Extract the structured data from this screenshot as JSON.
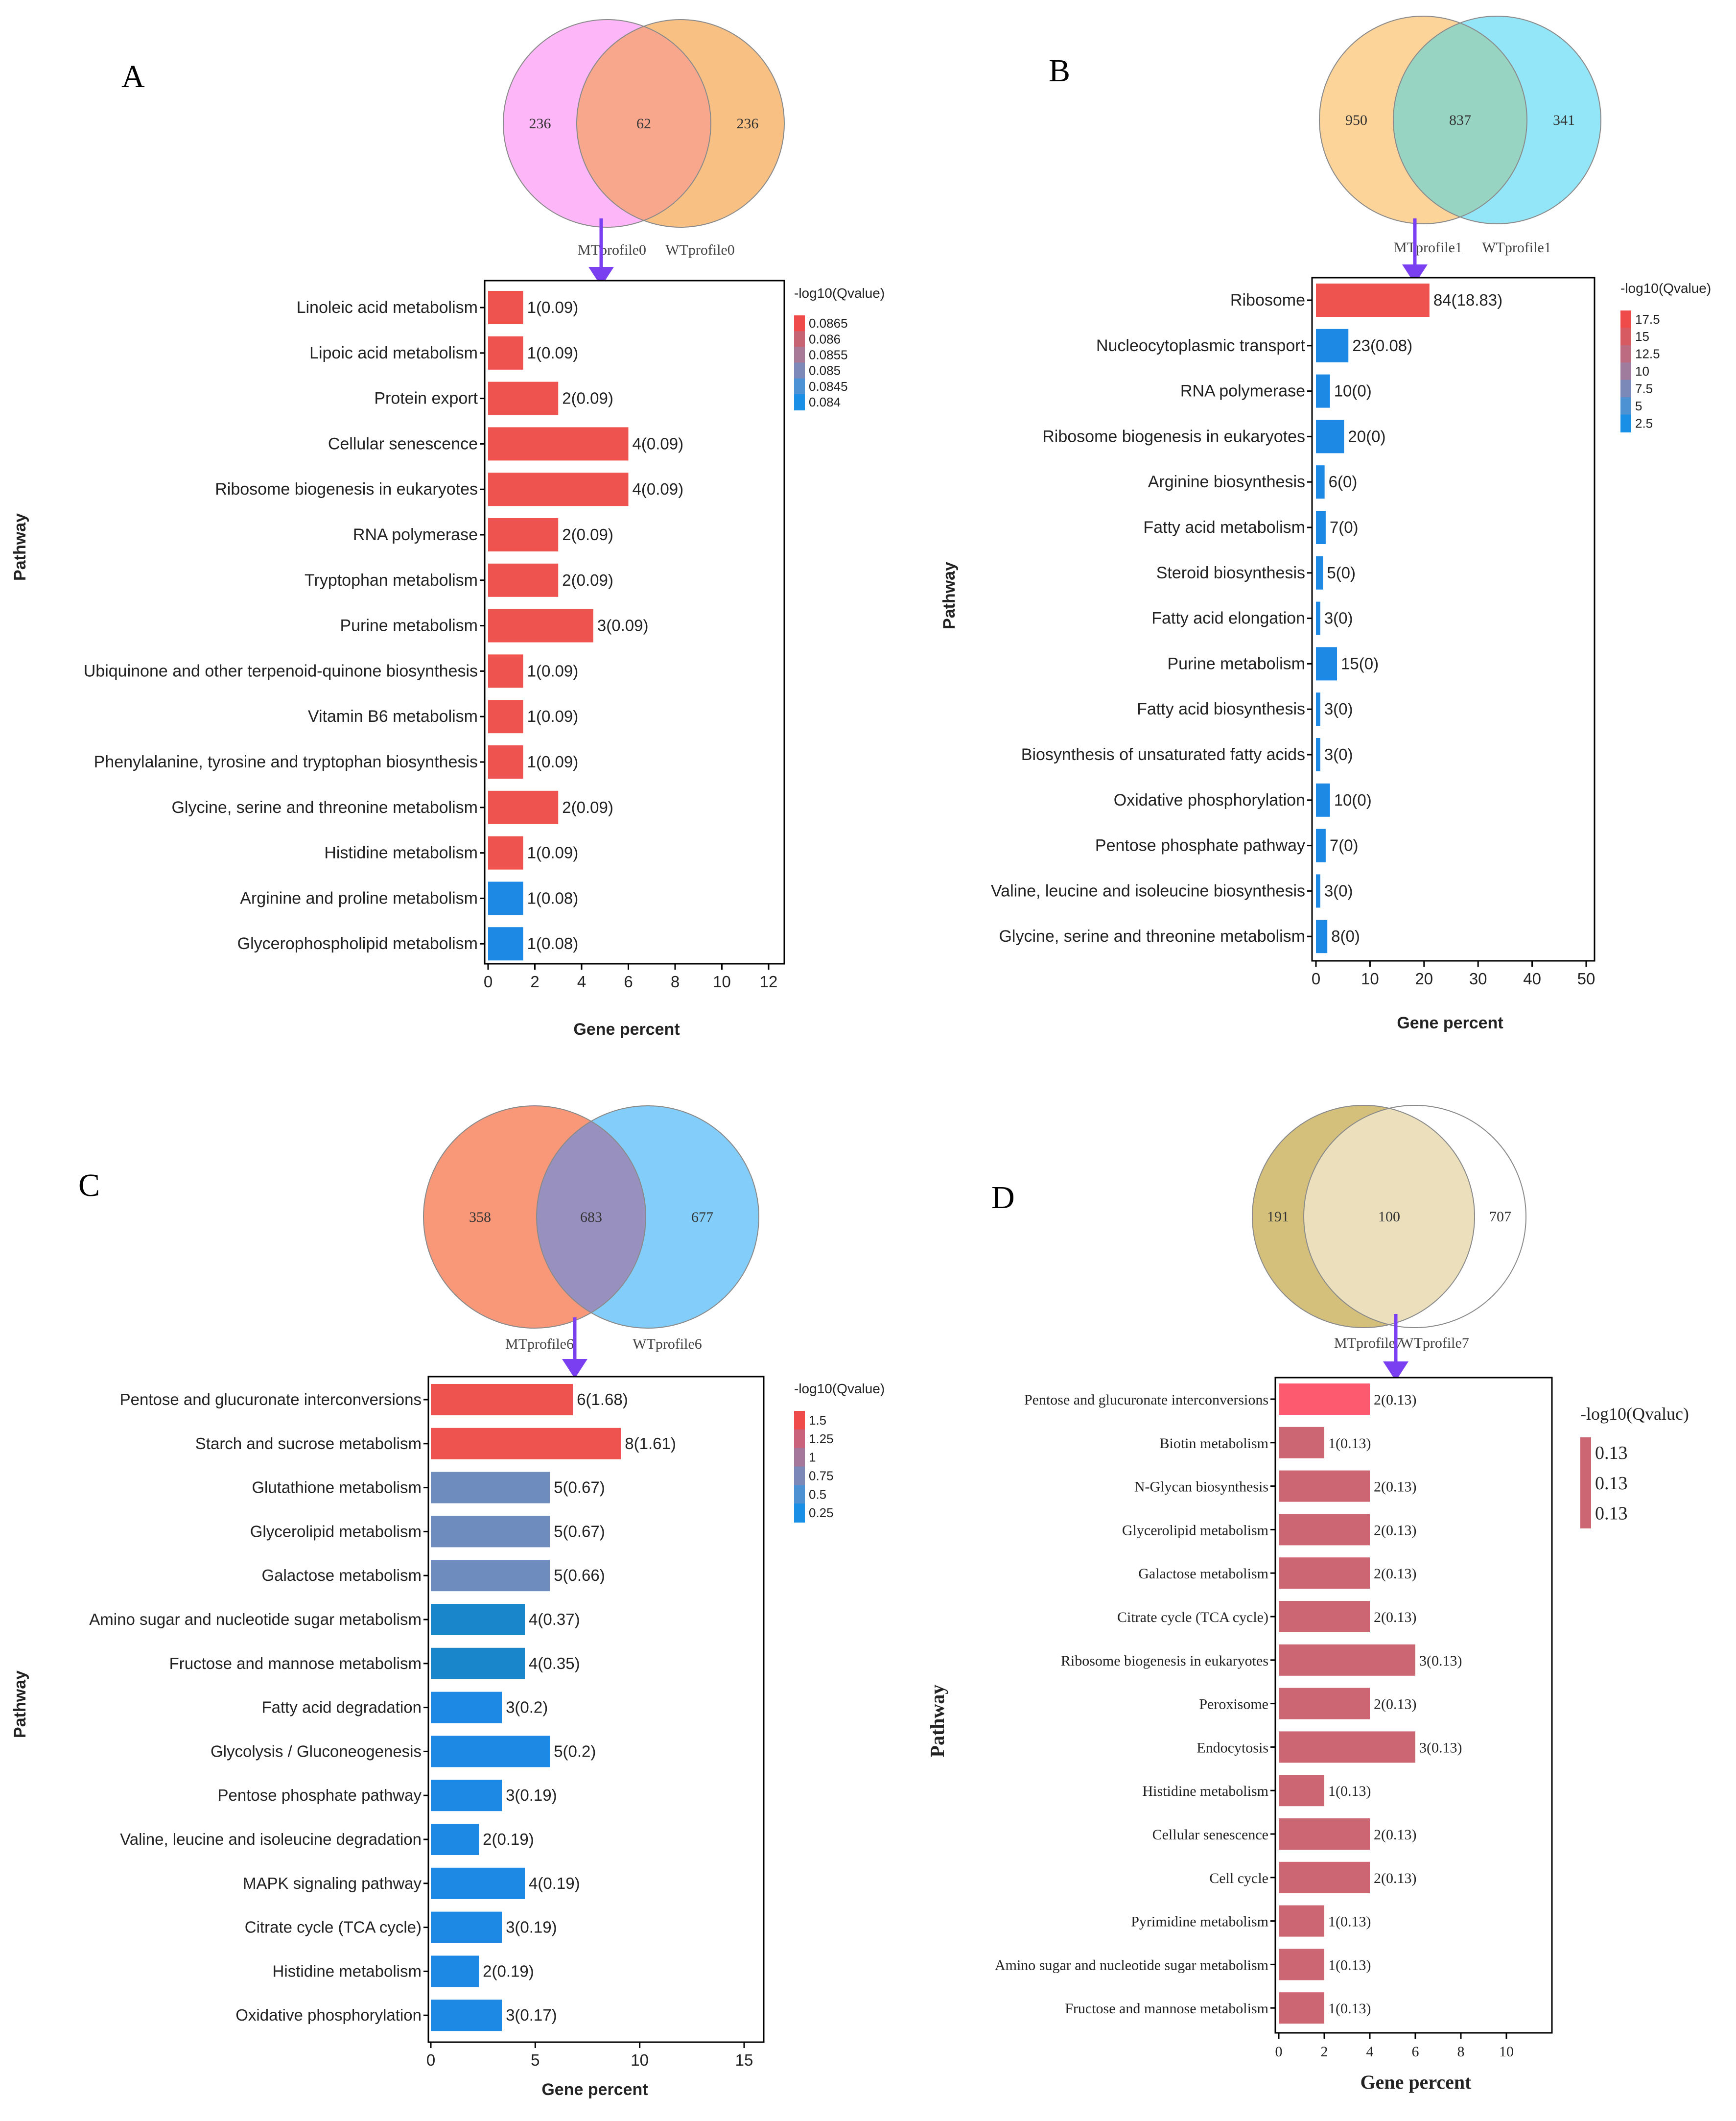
{
  "panels": [
    {
      "letter": "A",
      "venn": {
        "left_label": "MTprofile0",
        "right_label": "WTprofile0",
        "left_count": "236",
        "overlap_count": "62",
        "right_count": "236",
        "left_color": "#fdb6f7",
        "right_color": "#f9c084",
        "overlap_color": "#f8a78d"
      },
      "legend_title": "-log10(Qvalue)",
      "legend_ticks": [
        "0.0865",
        "0.086",
        "0.0855",
        "0.085",
        "0.0845",
        "0.084"
      ],
      "legend_colors": [
        "#ef4b4b",
        "#c76473",
        "#a87a97",
        "#7c89b9",
        "#4c92d4",
        "#1a8fe6"
      ],
      "chart_data": {
        "type": "bar",
        "orientation": "horizontal",
        "categories": [
          "Linoleic acid metabolism",
          "Lipoic acid metabolism",
          "Protein export",
          "Cellular senescence",
          "Ribosome biogenesis in eukaryotes",
          "RNA polymerase",
          "Tryptophan metabolism",
          "Purine metabolism",
          "Ubiquinone and other terpenoid-quinone biosynthesis",
          "Vitamin B6 metabolism",
          "Phenylalanine, tyrosine and tryptophan biosynthesis",
          "Glycine, serine and threonine metabolism",
          "Histidine metabolism",
          "Arginine and proline metabolism",
          "Glycerophospholipid metabolism"
        ],
        "values": [
          1.5,
          1.5,
          3.0,
          6.0,
          6.0,
          3.0,
          3.0,
          4.5,
          1.5,
          1.5,
          1.5,
          3.0,
          1.5,
          1.5,
          1.5
        ],
        "labels": [
          "1(0.09)",
          "1(0.09)",
          "2(0.09)",
          "4(0.09)",
          "4(0.09)",
          "2(0.09)",
          "2(0.09)",
          "3(0.09)",
          "1(0.09)",
          "1(0.09)",
          "1(0.09)",
          "2(0.09)",
          "1(0.09)",
          "1(0.08)",
          "1(0.08)"
        ],
        "colors": [
          "#ef5350",
          "#ef5350",
          "#ef5350",
          "#ef5350",
          "#ef5350",
          "#ef5350",
          "#ef5350",
          "#ef5350",
          "#ef5350",
          "#ef5350",
          "#ef5350",
          "#ef5350",
          "#ef5350",
          "#1e88e5",
          "#1e88e5"
        ],
        "xticks": [
          "0",
          "2",
          "4",
          "6",
          "8",
          "10",
          "12"
        ],
        "xlim": [
          0,
          12
        ],
        "xlabel": "Gene percent",
        "ylabel": "Pathway"
      }
    },
    {
      "letter": "B",
      "venn": {
        "left_label": "MTprofile1",
        "right_label": "WTprofile1",
        "left_count": "950",
        "overlap_count": "837",
        "right_count": "341",
        "left_color": "#fcd399",
        "right_color": "#93e6f7",
        "overlap_color": "#97d4c1"
      },
      "legend_title": "-log10(Qvalue)",
      "legend_ticks": [
        "17.5",
        "15",
        "12.5",
        "10",
        "7.5",
        "5",
        "2.5"
      ],
      "legend_colors": [
        "#ef4b4b",
        "#d75a62",
        "#bd6b80",
        "#9f7c9d",
        "#7b89b8",
        "#4d92d2",
        "#1a8fe6"
      ],
      "chart_data": {
        "type": "bar",
        "orientation": "horizontal",
        "categories": [
          "Ribosome",
          "Nucleocytoplasmic transport",
          "RNA polymerase",
          "Ribosome biogenesis in eukaryotes",
          "Arginine biosynthesis",
          "Fatty acid metabolism",
          "Steroid biosynthesis",
          "Fatty acid elongation",
          "Purine metabolism",
          "Fatty acid biosynthesis",
          "Biosynthesis of unsaturated fatty acids",
          "Oxidative phosphorylation",
          "Pentose phosphate pathway",
          "Valine, leucine and isoleucine biosynthesis",
          "Glycine, serine and threonine metabolism"
        ],
        "values": [
          21,
          6,
          2.6,
          5.2,
          1.6,
          1.8,
          1.3,
          0.8,
          3.9,
          0.8,
          0.8,
          2.6,
          1.8,
          0.8,
          2.1
        ],
        "labels": [
          "84(18.83)",
          "23(0.08)",
          "10(0)",
          "20(0)",
          "6(0)",
          "7(0)",
          "5(0)",
          "3(0)",
          "15(0)",
          "3(0)",
          "3(0)",
          "10(0)",
          "7(0)",
          "3(0)",
          "8(0)"
        ],
        "colors": [
          "#ef5350",
          "#1e88e5",
          "#1e88e5",
          "#1e88e5",
          "#1e88e5",
          "#1e88e5",
          "#1e88e5",
          "#1e88e5",
          "#1e88e5",
          "#1e88e5",
          "#1e88e5",
          "#1e88e5",
          "#1e88e5",
          "#1e88e5",
          "#1e88e5"
        ],
        "xticks": [
          "0",
          "10",
          "20",
          "30",
          "40",
          "50"
        ],
        "xlim": [
          0,
          50
        ],
        "xlabel": "Gene percent",
        "ylabel": "Pathway"
      }
    },
    {
      "letter": "C",
      "venn": {
        "left_label": "MTprofile6",
        "right_label": "WTprofile6",
        "left_count": "358",
        "overlap_count": "683",
        "right_count": "677",
        "left_color": "#f99779",
        "right_color": "#82cdfa",
        "overlap_color": "#9891c0"
      },
      "legend_title": "-log10(Qvalue)",
      "legend_ticks": [
        "1.5",
        "1.25",
        "1",
        "0.75",
        "0.5",
        "0.25"
      ],
      "legend_colors": [
        "#ef4b4b",
        "#c9627a",
        "#a5779b",
        "#7c88b8",
        "#4d91d2",
        "#1a8fe6"
      ],
      "chart_data": {
        "type": "bar",
        "orientation": "horizontal",
        "categories": [
          "Pentose and glucuronate interconversions",
          "Starch and sucrose metabolism",
          "Glutathione metabolism",
          "Glycerolipid metabolism",
          "Galactose metabolism",
          "Amino sugar and nucleotide sugar metabolism",
          "Fructose and mannose metabolism",
          "Fatty acid degradation",
          "Glycolysis / Gluconeogenesis",
          "Pentose phosphate pathway",
          "Valine, leucine and isoleucine degradation",
          "MAPK signaling pathway",
          "Citrate cycle (TCA cycle)",
          "Histidine metabolism",
          "Oxidative phosphorylation"
        ],
        "values": [
          6.8,
          9.1,
          5.7,
          5.7,
          5.7,
          4.5,
          4.5,
          3.4,
          5.7,
          3.4,
          2.3,
          4.5,
          3.4,
          2.3,
          3.4
        ],
        "labels": [
          "6(1.68)",
          "8(1.61)",
          "5(0.67)",
          "5(0.67)",
          "5(0.66)",
          "4(0.37)",
          "4(0.35)",
          "3(0.2)",
          "5(0.2)",
          "3(0.19)",
          "2(0.19)",
          "4(0.19)",
          "3(0.19)",
          "2(0.19)",
          "3(0.17)"
        ],
        "colors": [
          "#ef5350",
          "#ef5350",
          "#6f8cbe",
          "#6f8cbe",
          "#6f8cbe",
          "#1986cc",
          "#1986cc",
          "#1e88e5",
          "#1e88e5",
          "#1e88e5",
          "#1e88e5",
          "#1e88e5",
          "#1e88e5",
          "#1e88e5",
          "#1e88e5"
        ],
        "xticks": [
          "0",
          "5",
          "10",
          "15"
        ],
        "xlim": [
          0,
          15
        ],
        "xlabel": "Gene percent",
        "ylabel": "Pathway"
      }
    },
    {
      "letter": "D",
      "venn": {
        "left_label": "MTprofile7",
        "right_label": "WTprofile7",
        "left_count": "191",
        "overlap_count": "100",
        "right_count": "707",
        "left_color": "#d5c07b",
        "right_color": "#ffffff",
        "overlap_color": "#ebe0bb"
      },
      "legend_title": "-log10(Qvaluc)",
      "legend_ticks": [
        "0.13",
        "0.13",
        "0.13"
      ],
      "legend_colors": [
        "#cd6673",
        "#cd6673",
        "#cd6673"
      ],
      "chart_data": {
        "type": "bar",
        "orientation": "horizontal",
        "categories": [
          "Pentose and glucuronate interconversions",
          "Biotin metabolism",
          "N-Glycan biosynthesis",
          "Glycerolipid metabolism",
          "Galactose metabolism",
          "Citrate cycle (TCA cycle)",
          "Ribosome biogenesis in eukaryotes",
          "Peroxisome",
          "Endocytosis",
          "Histidine metabolism",
          "Cellular senescence",
          "Cell cycle",
          "Pyrimidine metabolism",
          "Amino sugar and nucleotide sugar metabolism",
          "Fructose and mannose metabolism"
        ],
        "values": [
          4,
          2,
          4,
          4,
          4,
          4,
          6,
          4,
          6,
          2,
          4,
          4,
          2,
          2,
          2
        ],
        "labels": [
          "2(0.13)",
          "1(0.13)",
          "2(0.13)",
          "2(0.13)",
          "2(0.13)",
          "2(0.13)",
          "3(0.13)",
          "2(0.13)",
          "3(0.13)",
          "1(0.13)",
          "2(0.13)",
          "2(0.13)",
          "1(0.13)",
          "1(0.13)",
          "1(0.13)"
        ],
        "colors": [
          "#fd5a6f",
          "#cd6673",
          "#cd6673",
          "#cd6673",
          "#cd6673",
          "#cd6673",
          "#cd6673",
          "#cd6673",
          "#cd6673",
          "#cd6673",
          "#cd6673",
          "#cd6673",
          "#cd6673",
          "#cd6673",
          "#cd6673"
        ],
        "xticks": [
          "0",
          "2",
          "4",
          "6",
          "8",
          "10"
        ],
        "xlim": [
          0,
          12
        ],
        "xlabel": "Gene percent",
        "ylabel": "Pathway"
      }
    }
  ]
}
